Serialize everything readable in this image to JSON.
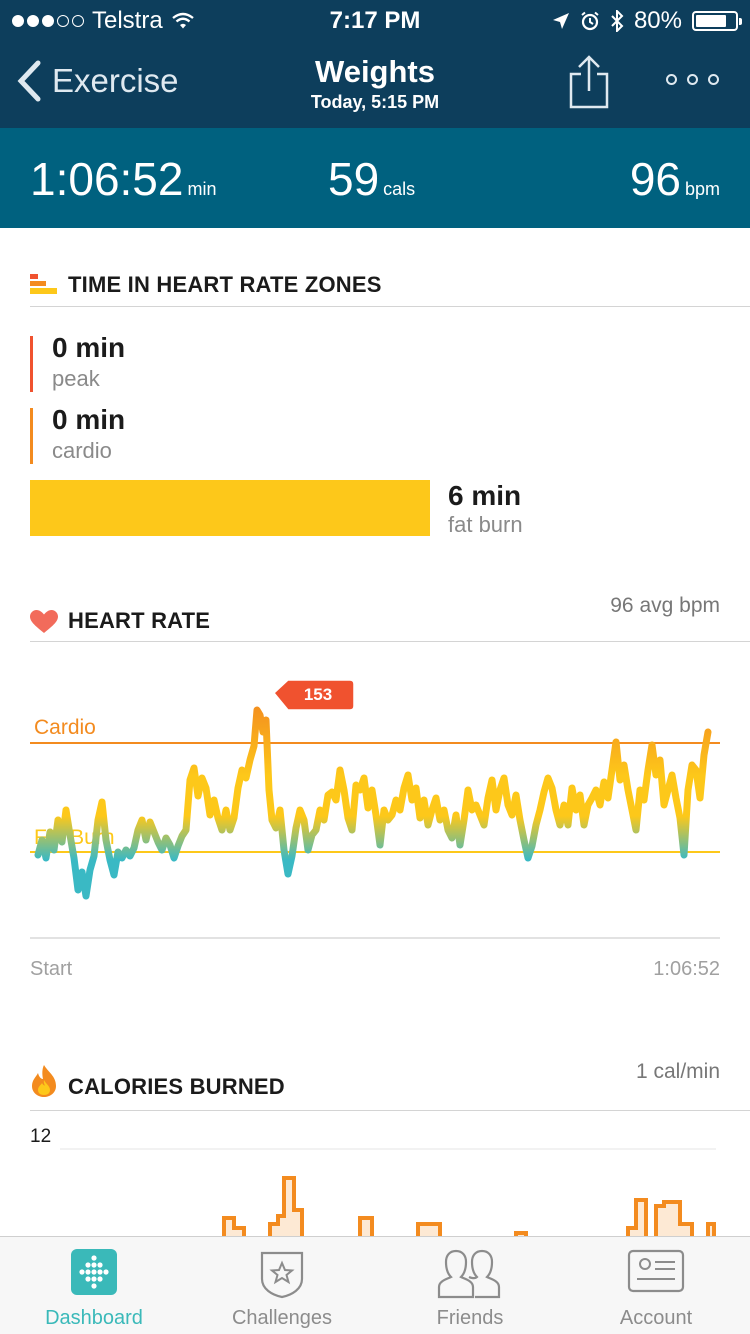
{
  "status_bar": {
    "carrier": "Telstra",
    "time": "7:17 PM",
    "battery": "80%",
    "battery_level": 0.8
  },
  "nav": {
    "back_label": "Exercise",
    "title": "Weights",
    "subtitle": "Today, 5:15 PM"
  },
  "summary": {
    "duration": "1:06:52",
    "duration_unit": "min",
    "calories": "59",
    "calories_unit": "cals",
    "heart_rate": "96",
    "heart_rate_unit": "bpm"
  },
  "zones_section": {
    "title": "TIME IN HEART RATE ZONES",
    "peak_value": "0 min",
    "peak_label": "peak",
    "cardio_value": "0 min",
    "cardio_label": "cardio",
    "fatburn_value": "6 min",
    "fatburn_label": "fat burn"
  },
  "heart_rate_section": {
    "title": "HEART RATE",
    "avg": "96 avg bpm",
    "peak_marker": "153",
    "cardio_line_label": "Cardio",
    "fatburn_line_label": "Fat Burn",
    "x_start": "Start",
    "x_end": "1:06:52"
  },
  "calories_section": {
    "title": "CALORIES BURNED",
    "rate": "1 cal/min",
    "y_max": "12"
  },
  "colors": {
    "header_dark": "#0d3e5c",
    "header_teal": "#00617f",
    "peak": "#f0522f",
    "cardio": "#f38b1f",
    "fatburn": "#fdc81a",
    "below_zone": "#3ab9c4",
    "accent": "#3ab9b9"
  },
  "tabs": [
    {
      "label": "Dashboard",
      "icon": "dashboard-icon",
      "active": true
    },
    {
      "label": "Challenges",
      "icon": "challenges-icon",
      "active": false
    },
    {
      "label": "Friends",
      "icon": "friends-icon",
      "active": false
    },
    {
      "label": "Account",
      "icon": "account-icon",
      "active": false
    }
  ]
}
